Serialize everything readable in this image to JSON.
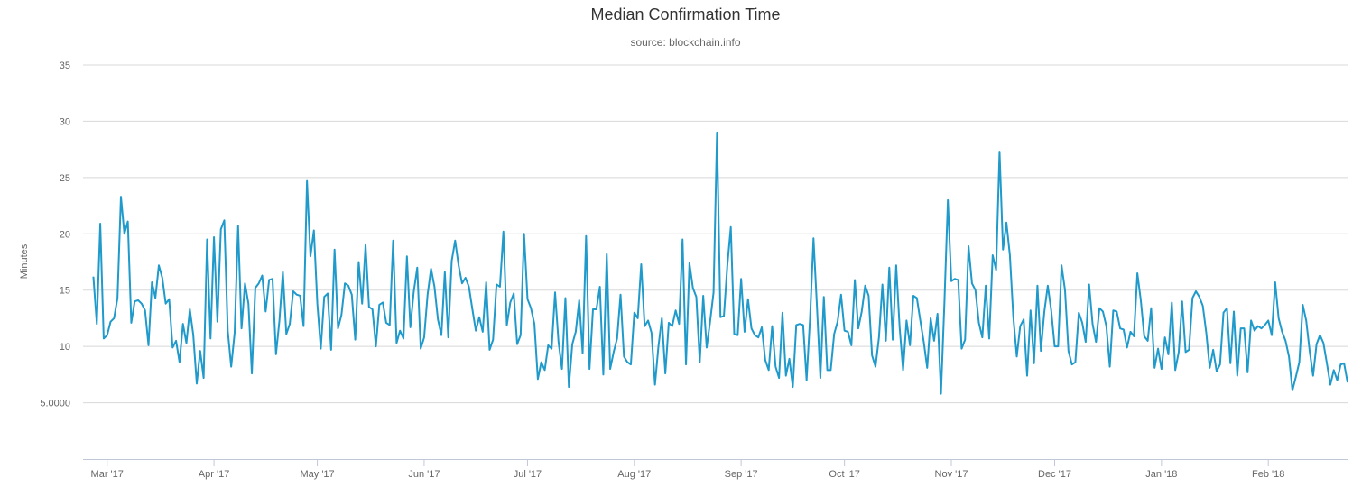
{
  "chart_data": {
    "type": "line",
    "title": "Median Confirmation Time",
    "subtitle": "source: blockchain.info",
    "ylabel": "Minutes",
    "xlabel": "",
    "ylim": [
      0,
      35
    ],
    "xlim": [
      "2017-02-22",
      "2018-02-24"
    ],
    "y_ticks": [
      {
        "value": 5,
        "label": "5.0000"
      },
      {
        "value": 10,
        "label": "10"
      },
      {
        "value": 15,
        "label": "15"
      },
      {
        "value": 20,
        "label": "20"
      },
      {
        "value": 25,
        "label": "25"
      },
      {
        "value": 30,
        "label": "30"
      },
      {
        "value": 35,
        "label": "35"
      }
    ],
    "x_ticks": [
      {
        "date": "2017-03-01",
        "label": "Mar '17"
      },
      {
        "date": "2017-04-01",
        "label": "Apr '17"
      },
      {
        "date": "2017-05-01",
        "label": "May '17"
      },
      {
        "date": "2017-06-01",
        "label": "Jun '17"
      },
      {
        "date": "2017-07-01",
        "label": "Jul '17"
      },
      {
        "date": "2017-08-01",
        "label": "Aug '17"
      },
      {
        "date": "2017-09-01",
        "label": "Sep '17"
      },
      {
        "date": "2017-10-01",
        "label": "Oct '17"
      },
      {
        "date": "2017-11-01",
        "label": "Nov '17"
      },
      {
        "date": "2017-12-01",
        "label": "Dec '17"
      },
      {
        "date": "2018-01-01",
        "label": "Jan '18"
      },
      {
        "date": "2018-02-01",
        "label": "Feb '18"
      }
    ],
    "grid": true,
    "legend": "none",
    "line_color": "#1f9acb",
    "series": [
      {
        "x_start": "2017-02-25",
        "x_step_days": 1,
        "values": [
          16.2,
          12.0,
          20.9,
          10.7,
          11.0,
          12.2,
          12.5,
          14.3,
          23.3,
          20.0,
          21.1,
          12.1,
          14.0,
          14.1,
          13.8,
          13.2,
          10.1,
          15.7,
          14.3,
          17.2,
          16.1,
          13.8,
          14.2,
          9.9,
          10.5,
          8.6,
          12.0,
          10.3,
          13.3,
          11.0,
          6.7,
          9.6,
          7.2,
          19.5,
          10.7,
          19.7,
          12.2,
          20.4,
          21.2,
          11.4,
          8.2,
          11.2,
          20.7,
          11.6,
          15.6,
          13.8,
          7.6,
          15.2,
          15.6,
          16.3,
          13.1,
          15.9,
          16.0,
          9.3,
          12.3,
          16.6,
          11.1,
          12.0,
          14.9,
          14.6,
          14.5,
          11.8,
          24.7,
          18.0,
          20.3,
          13.8,
          9.8,
          14.4,
          14.7,
          9.7,
          18.6,
          11.6,
          12.8,
          15.6,
          15.4,
          14.6,
          10.6,
          17.5,
          13.8,
          19.0,
          13.5,
          13.3,
          10.0,
          13.7,
          13.9,
          12.1,
          11.9,
          19.4,
          10.3,
          11.4,
          10.7,
          18.0,
          11.7,
          14.9,
          17.0,
          9.8,
          10.8,
          14.6,
          16.9,
          15.3,
          12.4,
          11.0,
          16.6,
          10.8,
          17.6,
          19.4,
          17.2,
          15.6,
          16.1,
          15.3,
          13.3,
          11.4,
          12.6,
          11.3,
          15.7,
          9.7,
          10.6,
          15.5,
          15.3,
          20.2,
          11.9,
          13.9,
          14.7,
          10.2,
          11.0,
          20.0,
          14.2,
          13.4,
          12.0,
          7.1,
          8.6,
          7.9,
          10.1,
          9.8,
          14.8,
          10.4,
          8.0,
          14.3,
          6.4,
          10.2,
          11.3,
          14.1,
          9.4,
          19.8,
          8.0,
          13.3,
          13.3,
          15.3,
          7.5,
          18.2,
          8.0,
          9.5,
          10.7,
          14.6,
          9.1,
          8.6,
          8.4,
          13.0,
          12.5,
          17.3,
          11.8,
          12.3,
          11.2,
          6.6,
          10.0,
          12.5,
          7.6,
          12.1,
          11.8,
          13.2,
          12.0,
          19.5,
          8.4,
          17.4,
          15.2,
          14.4,
          8.6,
          14.5,
          9.9,
          12.2,
          14.8,
          29.0,
          12.6,
          12.7,
          17.2,
          20.6,
          11.1,
          11.0,
          16.0,
          11.3,
          14.2,
          11.6,
          11.0,
          10.8,
          11.7,
          8.8,
          7.9,
          11.8,
          8.2,
          7.2,
          13.0,
          7.4,
          8.9,
          6.4,
          11.9,
          12.0,
          11.9,
          7.0,
          12.5,
          19.6,
          13.6,
          7.2,
          14.4,
          7.9,
          7.9,
          11.1,
          12.2,
          14.6,
          11.4,
          11.3,
          10.1,
          15.9,
          11.6,
          13.1,
          15.4,
          14.5,
          9.2,
          8.2,
          10.8,
          15.5,
          10.5,
          17.0,
          10.6,
          17.2,
          11.7,
          7.9,
          12.3,
          10.1,
          14.5,
          14.3,
          12.3,
          10.4,
          8.1,
          12.5,
          10.5,
          12.9,
          5.8,
          13.9,
          23.0,
          15.8,
          16.0,
          15.9,
          9.8,
          10.6,
          18.9,
          15.6,
          15.0,
          12.1,
          10.8,
          15.4,
          10.7,
          18.1,
          16.8,
          27.3,
          18.6,
          21.0,
          18.1,
          12.6,
          9.1,
          11.8,
          12.4,
          7.4,
          13.2,
          8.5,
          15.4,
          9.6,
          13.1,
          15.4,
          13.2,
          10.0,
          10.0,
          17.2,
          15.0,
          9.6,
          8.4,
          8.6,
          13.0,
          12.1,
          10.4,
          15.5,
          12.0,
          10.4,
          13.4,
          13.1,
          11.8,
          8.2,
          13.2,
          13.1,
          11.6,
          11.5,
          9.9,
          11.3,
          10.9,
          16.5,
          14.1,
          10.9,
          10.5,
          13.4,
          8.1,
          9.8,
          8.0,
          10.8,
          9.3,
          13.9,
          7.9,
          9.5,
          14.0,
          9.5,
          9.7,
          14.3,
          14.9,
          14.4,
          13.6,
          11.2,
          8.1,
          9.7,
          7.8,
          8.4,
          13.0,
          13.4,
          8.5,
          13.1,
          7.4,
          11.6,
          11.6,
          7.7,
          12.3,
          11.4,
          11.8,
          11.6,
          11.9,
          12.3,
          11.0,
          15.7,
          12.5,
          11.3,
          10.5,
          9.1,
          6.1,
          7.3,
          8.6,
          13.7,
          12.3,
          9.6,
          7.4,
          10.2,
          11.0,
          10.3,
          8.5,
          6.6,
          7.9,
          7.0,
          8.4,
          8.5,
          6.8
        ]
      }
    ]
  }
}
